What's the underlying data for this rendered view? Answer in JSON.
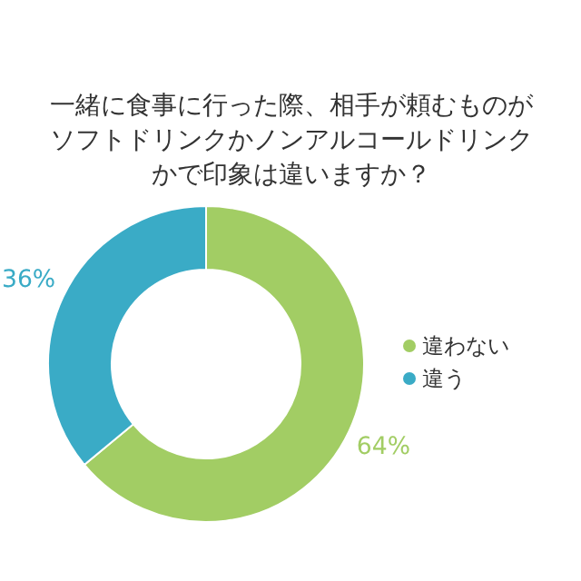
{
  "chart_data": {
    "type": "donut",
    "title": "一緒に食事に行った際、相手が頼むものがソフトドリンクかノンアルコールドリンクかで印象は違いますか？",
    "categories": [
      "違わない",
      "違う"
    ],
    "values": [
      64,
      36
    ],
    "colors": [
      "#a2cd64",
      "#3aabc6"
    ],
    "value_labels": [
      "64%",
      "36%"
    ],
    "legend": "right"
  }
}
